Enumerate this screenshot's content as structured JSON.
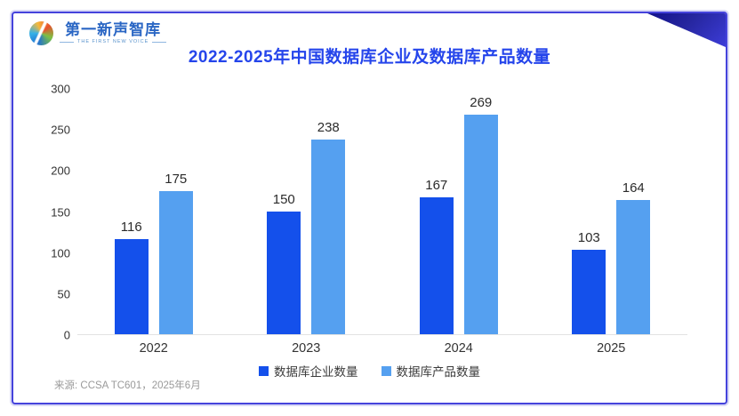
{
  "logo": {
    "name": "第一新声智库",
    "tagline": "THE FIRST NEW VOICE",
    "icon": "globe-swirl-logo-icon"
  },
  "title": "2022-2025年中国数据库企业及数据库产品数量",
  "source": "来源: CCSA TC601，2025年6月",
  "colors": {
    "title_blue": "#2545EB",
    "series_enterprise": "#1450EB",
    "series_product": "#55A0F0",
    "corner_triangle_dark": "#12128a",
    "card_border": "#4543dc",
    "axis_line": "#e2e2e2"
  },
  "chart_data": {
    "type": "bar",
    "title": "2022-2025年中国数据库企业及数据库产品数量",
    "categories": [
      "2022",
      "2023",
      "2024",
      "2025"
    ],
    "series": [
      {
        "name": "数据库企业数量",
        "color": "#1450EB",
        "values": [
          116,
          150,
          167,
          103
        ]
      },
      {
        "name": "数据库产品数量",
        "color": "#55A0F0",
        "values": [
          175,
          238,
          269,
          164
        ]
      }
    ],
    "xlabel": "",
    "ylabel": "",
    "ylim": [
      0,
      300
    ],
    "ytick_step": 50,
    "grid": false,
    "legend_position": "bottom"
  }
}
